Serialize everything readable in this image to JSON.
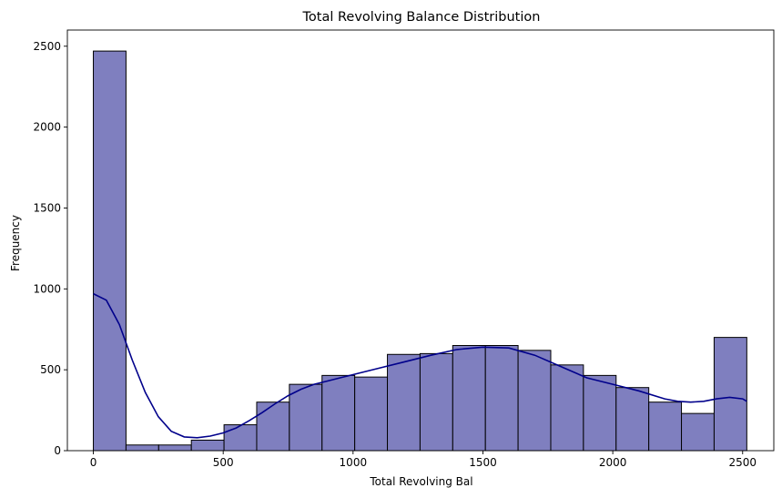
{
  "chart_data": {
    "type": "bar",
    "title": "Total Revolving Balance Distribution",
    "xlabel": "Total Revolving Bal",
    "ylabel": "Frequency",
    "xlim": [
      -100,
      2620
    ],
    "ylim": [
      0,
      2600
    ],
    "xticks": [
      0,
      500,
      1000,
      1500,
      2000,
      2500
    ],
    "yticks": [
      0,
      500,
      1000,
      1500,
      2000,
      2500
    ],
    "bin_edges": [
      0,
      125.8,
      251.6,
      377.4,
      503.2,
      629,
      754.8,
      880.6,
      1006.4,
      1132.2,
      1258,
      1383.8,
      1509.6,
      1635.4,
      1761.2,
      1887,
      2012.8,
      2138.6,
      2264.4,
      2390.2,
      2516
    ],
    "values": [
      2470,
      35,
      35,
      65,
      160,
      300,
      410,
      465,
      455,
      595,
      600,
      650,
      650,
      620,
      530,
      465,
      390,
      300,
      230,
      700
    ],
    "kde": {
      "x": [
        0,
        50,
        100,
        150,
        200,
        250,
        300,
        350,
        400,
        450,
        500,
        550,
        600,
        650,
        700,
        750,
        800,
        850,
        900,
        950,
        1000,
        1100,
        1200,
        1300,
        1400,
        1500,
        1600,
        1700,
        1800,
        1900,
        2000,
        2100,
        2200,
        2250,
        2300,
        2350,
        2400,
        2450,
        2500,
        2516
      ],
      "y": [
        970,
        930,
        780,
        560,
        360,
        210,
        120,
        85,
        80,
        90,
        110,
        140,
        185,
        235,
        290,
        340,
        380,
        410,
        430,
        450,
        470,
        510,
        550,
        590,
        625,
        640,
        635,
        590,
        520,
        450,
        410,
        370,
        320,
        305,
        300,
        305,
        320,
        330,
        320,
        305
      ]
    },
    "bar_color": "#7f7fbf",
    "bar_edge": "#000000",
    "kde_color": "#00008b",
    "grid": false
  }
}
